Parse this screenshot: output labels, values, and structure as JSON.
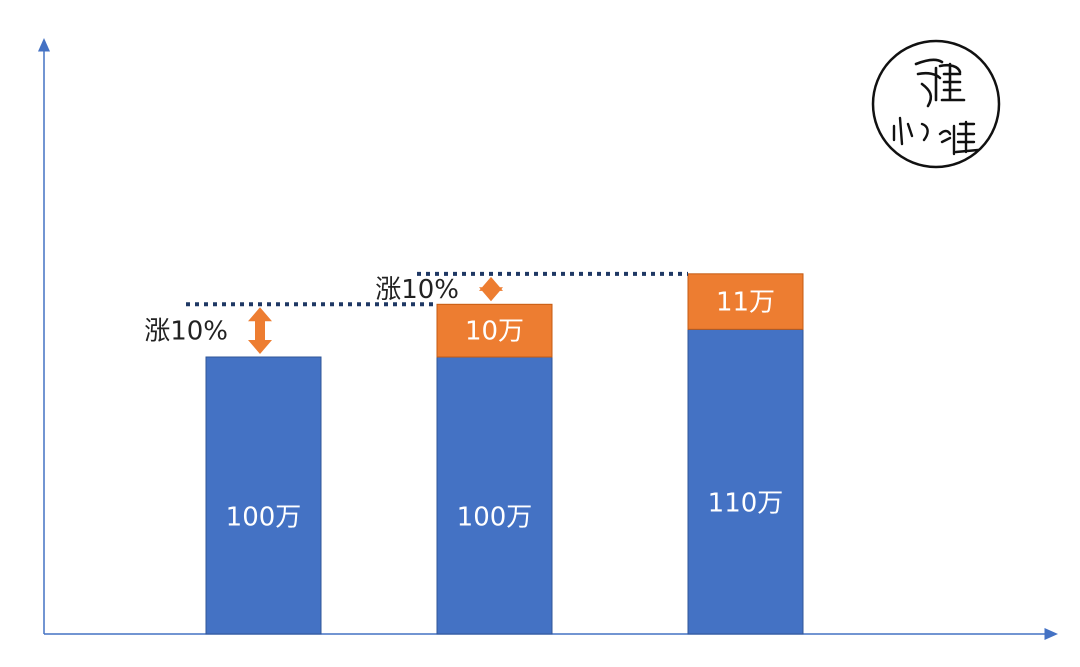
{
  "chart_data": {
    "type": "bar",
    "stacked": true,
    "categories": [
      "",
      "",
      ""
    ],
    "series": [
      {
        "values": [
          100,
          100,
          110
        ],
        "labels": [
          "100万",
          "100万",
          "110万"
        ]
      },
      {
        "values": [
          0,
          10,
          11
        ],
        "labels": [
          "",
          "10万",
          "11万"
        ]
      }
    ],
    "ylim": [
      0,
      160
    ],
    "annotations": [
      {
        "text": "涨10%",
        "from_bar": 0
      },
      {
        "text": "涨10%",
        "from_bar": 1
      }
    ],
    "colors": {
      "base": "#4472C4",
      "increment": "#ED7D31",
      "arrow": "#ED7D31",
      "reference": "#1F3864",
      "axis": "#4472C4"
    }
  },
  "logo": {
    "text": "小维",
    "name": "seal-logo"
  }
}
